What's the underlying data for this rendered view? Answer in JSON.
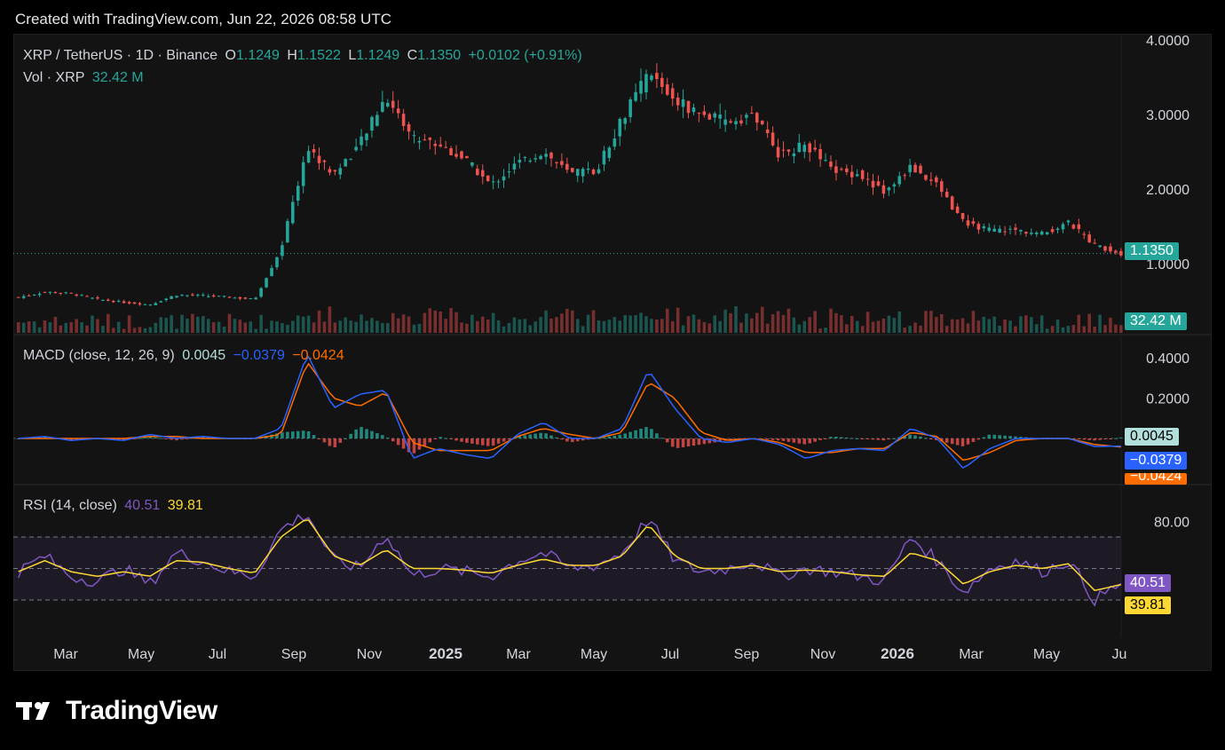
{
  "header": {
    "created": "Created with TradingView.com, Jun 22, 2026 08:58 UTC"
  },
  "price_legend": {
    "symbol": "XRP / TetherUS · 1D · Binance",
    "o_label": "O",
    "o": "1.1249",
    "h_label": "H",
    "h": "1.1522",
    "l_label": "L",
    "l": "1.1249",
    "c_label": "C",
    "c": "1.1350",
    "change": "+0.0102 (+0.91%)"
  },
  "vol_legend": {
    "label": "Vol · XRP",
    "value": "32.42 M"
  },
  "macd_legend": {
    "label": "MACD (close, 12, 26, 9)",
    "hist": "0.0045",
    "macd": "−0.0379",
    "signal": "−0.0424"
  },
  "rsi_legend": {
    "label": "RSI (14, close)",
    "rsi": "40.51",
    "ma": "39.81"
  },
  "price_tag": "1.1350",
  "vol_tag": "32.42 M",
  "macd_tags": {
    "hist": "0.0045",
    "macd": "−0.0379",
    "signal": "−0.0424"
  },
  "rsi_tags": {
    "rsi": "40.51",
    "ma": "39.81"
  },
  "brand": {
    "name": "TradingView"
  },
  "colors": {
    "up": "#26a69a",
    "down": "#ef5350",
    "macd": "#2962ff",
    "signal": "#ff6d00",
    "rsi": "#7e57c2",
    "rsi_ma": "#fdd835"
  },
  "chart_data": [
    {
      "type": "line",
      "title": "XRP / TetherUS · 1D · Binance",
      "y_ticks": [
        "4.0000",
        "3.0000",
        "2.0000",
        "1.0000"
      ],
      "ylim": [
        0,
        4
      ],
      "x_ticks": [
        "Mar",
        "May",
        "Jul",
        "Sep",
        "Nov",
        "2025",
        "Mar",
        "May",
        "Jul",
        "Sep",
        "Nov",
        "2026",
        "Mar",
        "May",
        "Ju"
      ],
      "x": [
        "2024-02",
        "2024-03",
        "2024-04",
        "2024-05",
        "2024-06",
        "2024-07",
        "2024-08",
        "2024-09",
        "2024-10",
        "2024-11-05",
        "2024-11-20",
        "2024-12-03",
        "2024-12-20",
        "2025-01-07",
        "2025-01-16",
        "2025-02-03",
        "2025-02-20",
        "2025-03-10",
        "2025-04-07",
        "2025-05-01",
        "2025-05-14",
        "2025-06-10",
        "2025-06-30",
        "2025-07-10",
        "2025-07-18",
        "2025-08-05",
        "2025-08-20",
        "2025-09-10",
        "2025-09-25",
        "2025-10-10",
        "2025-10-20",
        "2025-11-05",
        "2025-11-25",
        "2025-12-20",
        "2026-01-06",
        "2026-01-20",
        "2026-02-05",
        "2026-03-01",
        "2026-04-01",
        "2026-05-01",
        "2026-05-20",
        "2026-06-05",
        "2026-06-22"
      ],
      "series": [
        {
          "values": [
            0.55,
            0.62,
            0.6,
            0.52,
            0.48,
            0.45,
            0.58,
            0.57,
            0.55,
            0.52,
            1.2,
            2.55,
            2.2,
            2.6,
            3.25,
            2.7,
            2.6,
            2.4,
            2.05,
            2.35,
            2.5,
            2.2,
            2.25,
            2.95,
            3.55,
            3.2,
            3.0,
            2.9,
            3.0,
            2.45,
            2.6,
            2.25,
            2.2,
            1.95,
            2.3,
            2.05,
            1.55,
            1.45,
            1.45,
            1.4,
            1.55,
            1.25,
            1.135
          ]
        }
      ],
      "volume_last": "32.42 M"
    },
    {
      "type": "line",
      "title": "MACD (close, 12, 26, 9)",
      "y_ticks": [
        "0.4000",
        "0.2000"
      ],
      "ylim": [
        -0.2,
        0.45
      ],
      "series": [
        {
          "name": "MACD",
          "values": [
            0.0,
            0.01,
            -0.01,
            0.0,
            -0.01,
            0.02,
            0.0,
            0.01,
            0.0,
            0.0,
            0.05,
            0.42,
            0.15,
            0.22,
            0.24,
            -0.1,
            -0.05,
            -0.08,
            -0.1,
            0.02,
            0.08,
            0.0,
            0.0,
            0.05,
            0.34,
            0.15,
            0.0,
            -0.02,
            0.0,
            -0.03,
            -0.1,
            -0.06,
            -0.05,
            -0.06,
            0.05,
            0.0,
            -0.15,
            -0.05,
            0.0,
            0.0,
            0.0,
            -0.04,
            -0.0379
          ]
        },
        {
          "name": "Signal",
          "values": [
            0.0,
            0.0,
            0.0,
            0.0,
            0.0,
            0.01,
            0.01,
            0.0,
            0.0,
            0.0,
            0.02,
            0.38,
            0.2,
            0.16,
            0.23,
            -0.02,
            -0.06,
            -0.06,
            -0.06,
            0.01,
            0.05,
            0.02,
            0.0,
            0.03,
            0.28,
            0.2,
            0.03,
            -0.01,
            0.0,
            -0.02,
            -0.07,
            -0.07,
            -0.05,
            -0.05,
            0.03,
            0.01,
            -0.11,
            -0.07,
            -0.01,
            0.0,
            0.0,
            -0.03,
            -0.0424
          ]
        }
      ],
      "hist_last": "0.0045"
    },
    {
      "type": "line",
      "title": "RSI (14, close)",
      "y_ticks": [
        "80.00"
      ],
      "ylim": [
        20,
        95
      ],
      "bands": [
        70,
        50,
        30
      ],
      "series": [
        {
          "name": "RSI",
          "values": [
            48,
            58,
            45,
            42,
            50,
            40,
            60,
            55,
            48,
            45,
            75,
            85,
            55,
            50,
            72,
            45,
            50,
            48,
            45,
            55,
            60,
            50,
            52,
            60,
            82,
            55,
            48,
            50,
            55,
            45,
            50,
            48,
            45,
            42,
            70,
            55,
            35,
            50,
            55,
            48,
            55,
            30,
            40.51
          ]
        },
        {
          "name": "RSI-based MA",
          "values": [
            48,
            55,
            48,
            45,
            48,
            45,
            55,
            54,
            50,
            47,
            70,
            82,
            58,
            52,
            62,
            50,
            50,
            49,
            47,
            52,
            56,
            52,
            52,
            58,
            78,
            58,
            50,
            50,
            52,
            48,
            49,
            48,
            46,
            45,
            60,
            55,
            40,
            48,
            52,
            50,
            53,
            36,
            39.81
          ]
        }
      ]
    }
  ]
}
